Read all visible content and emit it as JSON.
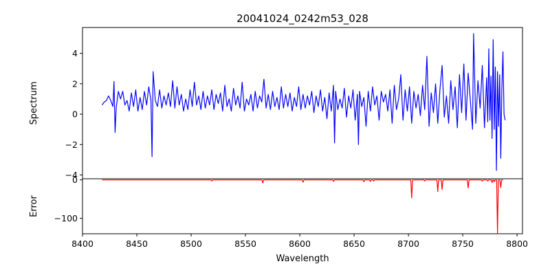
{
  "chart_data": {
    "type": "line",
    "title": "20041024_0242m53_028",
    "xlabel": "Wavelength",
    "xlim": [
      8400,
      8805
    ],
    "x_ticks": [
      "8400",
      "8450",
      "8500",
      "8550",
      "8600",
      "8650",
      "8700",
      "8750",
      "8800"
    ],
    "x_range": [
      8418,
      8787
    ],
    "panels": [
      {
        "ylabel": "Spectrum",
        "ylim": [
          -4.25,
          5.7
        ],
        "y_ticks": [
          "−4",
          "−2",
          "0",
          "2",
          "4"
        ],
        "series": [
          {
            "color": "#0000ff",
            "points": [
              [
                8418,
                0.6
              ],
              [
                8420,
                0.8
              ],
              [
                8422,
                0.9
              ],
              [
                8424,
                1.2
              ],
              [
                8426,
                0.9
              ],
              [
                8428,
                0.5
              ],
              [
                8429,
                2.15
              ],
              [
                8430,
                -1.2
              ],
              [
                8431,
                0.4
              ],
              [
                8433,
                1.5
              ],
              [
                8435,
                1.0
              ],
              [
                8437,
                1.5
              ],
              [
                8439,
                0.6
              ],
              [
                8441,
                0.9
              ],
              [
                8443,
                0.2
              ],
              [
                8445,
                1.4
              ],
              [
                8447,
                0.5
              ],
              [
                8449,
                1.6
              ],
              [
                8451,
                0.2
              ],
              [
                8453,
                1.1
              ],
              [
                8455,
                0.3
              ],
              [
                8457,
                1.5
              ],
              [
                8459,
                0.6
              ],
              [
                8461,
                1.8
              ],
              [
                8463,
                0.9
              ],
              [
                8464,
                -2.8
              ],
              [
                8465,
                2.8
              ],
              [
                8467,
                0.9
              ],
              [
                8469,
                0.5
              ],
              [
                8471,
                1.6
              ],
              [
                8473,
                0.4
              ],
              [
                8475,
                1.2
              ],
              [
                8477,
                0.6
              ],
              [
                8479,
                1.4
              ],
              [
                8481,
                0.5
              ],
              [
                8483,
                2.2
              ],
              [
                8485,
                0.4
              ],
              [
                8487,
                1.8
              ],
              [
                8489,
                0.6
              ],
              [
                8491,
                1.3
              ],
              [
                8493,
                0.2
              ],
              [
                8495,
                1.0
              ],
              [
                8497,
                0.3
              ],
              [
                8499,
                1.6
              ],
              [
                8501,
                0.5
              ],
              [
                8503,
                2.1
              ],
              [
                8505,
                0.6
              ],
              [
                8507,
                1.2
              ],
              [
                8509,
                0.3
              ],
              [
                8511,
                1.5
              ],
              [
                8513,
                0.4
              ],
              [
                8515,
                1.2
              ],
              [
                8517,
                0.6
              ],
              [
                8519,
                1.6
              ],
              [
                8521,
                0.3
              ],
              [
                8523,
                1.3
              ],
              [
                8525,
                0.7
              ],
              [
                8527,
                1.4
              ],
              [
                8529,
                0.2
              ],
              [
                8531,
                1.9
              ],
              [
                8533,
                0.5
              ],
              [
                8535,
                1.0
              ],
              [
                8537,
                0.2
              ],
              [
                8539,
                1.7
              ],
              [
                8541,
                0.6
              ],
              [
                8543,
                1.2
              ],
              [
                8545,
                0.4
              ],
              [
                8547,
                2.1
              ],
              [
                8549,
                0.2
              ],
              [
                8551,
                1.0
              ],
              [
                8553,
                0.6
              ],
              [
                8555,
                1.3
              ],
              [
                8557,
                0.2
              ],
              [
                8559,
                1.5
              ],
              [
                8561,
                0.4
              ],
              [
                8563,
                1.2
              ],
              [
                8565,
                0.8
              ],
              [
                8567,
                2.3
              ],
              [
                8569,
                0.4
              ],
              [
                8571,
                1.3
              ],
              [
                8573,
                0.3
              ],
              [
                8575,
                1.5
              ],
              [
                8577,
                0.5
              ],
              [
                8579,
                1.1
              ],
              [
                8581,
                0.3
              ],
              [
                8583,
                1.8
              ],
              [
                8585,
                0.4
              ],
              [
                8587,
                1.3
              ],
              [
                8589,
                0.5
              ],
              [
                8591,
                1.4
              ],
              [
                8593,
                0.2
              ],
              [
                8595,
                1.1
              ],
              [
                8597,
                0.5
              ],
              [
                8599,
                1.8
              ],
              [
                8601,
                0.3
              ],
              [
                8603,
                1.3
              ],
              [
                8605,
                0.4
              ],
              [
                8607,
                1.2
              ],
              [
                8609,
                0.6
              ],
              [
                8611,
                1.5
              ],
              [
                8613,
                0.1
              ],
              [
                8615,
                1.2
              ],
              [
                8617,
                0.5
              ],
              [
                8619,
                1.6
              ],
              [
                8621,
                0.2
              ],
              [
                8623,
                1.1
              ],
              [
                8625,
                -0.3
              ],
              [
                8627,
                1.4
              ],
              [
                8629,
                0.2
              ],
              [
                8631,
                1.9
              ],
              [
                8632,
                -1.9
              ],
              [
                8633,
                1.5
              ],
              [
                8635,
                0.3
              ],
              [
                8637,
                1.0
              ],
              [
                8639,
                0.4
              ],
              [
                8641,
                1.7
              ],
              [
                8643,
                -0.2
              ],
              [
                8645,
                1.2
              ],
              [
                8647,
                0.4
              ],
              [
                8649,
                1.6
              ],
              [
                8651,
                -0.4
              ],
              [
                8653,
                1.3
              ],
              [
                8654,
                -2.0
              ],
              [
                8655,
                1.5
              ],
              [
                8657,
                0.5
              ],
              [
                8659,
                1.1
              ],
              [
                8661,
                -0.8
              ],
              [
                8663,
                1.5
              ],
              [
                8665,
                0.2
              ],
              [
                8667,
                1.8
              ],
              [
                8669,
                0.6
              ],
              [
                8671,
                1.2
              ],
              [
                8673,
                -0.4
              ],
              [
                8675,
                1.5
              ],
              [
                8677,
                0.8
              ],
              [
                8679,
                1.3
              ],
              [
                8681,
                0.2
              ],
              [
                8683,
                1.6
              ],
              [
                8685,
                -0.6
              ],
              [
                8687,
                1.9
              ],
              [
                8689,
                0.3
              ],
              [
                8691,
                1.0
              ],
              [
                8693,
                2.6
              ],
              [
                8695,
                -0.4
              ],
              [
                8697,
                1.6
              ],
              [
                8699,
                0.2
              ],
              [
                8701,
                1.8
              ],
              [
                8703,
                -0.6
              ],
              [
                8705,
                1.5
              ],
              [
                8707,
                0.4
              ],
              [
                8709,
                1.3
              ],
              [
                8711,
                -0.1
              ],
              [
                8713,
                1.9
              ],
              [
                8715,
                0.3
              ],
              [
                8717,
                3.8
              ],
              [
                8719,
                -0.8
              ],
              [
                8721,
                1.4
              ],
              [
                8723,
                0.1
              ],
              [
                8725,
                2.0
              ],
              [
                8727,
                -0.6
              ],
              [
                8729,
                1.6
              ],
              [
                8731,
                3.2
              ],
              [
                8733,
                -0.2
              ],
              [
                8735,
                1.2
              ],
              [
                8737,
                -0.6
              ],
              [
                8739,
                2.2
              ],
              [
                8741,
                0.3
              ],
              [
                8743,
                1.8
              ],
              [
                8745,
                -0.9
              ],
              [
                8747,
                2.6
              ],
              [
                8749,
                0.1
              ],
              [
                8751,
                3.3
              ],
              [
                8753,
                -0.4
              ],
              [
                8755,
                2.7
              ],
              [
                8757,
                0.9
              ],
              [
                8759,
                -1.0
              ],
              [
                8760,
                5.3
              ],
              [
                8762,
                -0.6
              ],
              [
                8764,
                2.2
              ],
              [
                8766,
                0.4
              ],
              [
                8768,
                3.2
              ],
              [
                8770,
                -0.9
              ],
              [
                8772,
                2.4
              ],
              [
                8773,
                -0.5
              ],
              [
                8774,
                4.3
              ],
              [
                8775,
                -0.4
              ],
              [
                8776,
                2.5
              ],
              [
                8777,
                -1.6
              ],
              [
                8778,
                4.9
              ],
              [
                8779,
                -1.0
              ],
              [
                8780,
                3.1
              ],
              [
                8781,
                -3.7
              ],
              [
                8782,
                2.8
              ],
              [
                8783,
                -0.8
              ],
              [
                8784,
                2.6
              ],
              [
                8785,
                -2.9
              ],
              [
                8786,
                1.7
              ],
              [
                8787,
                4.1
              ],
              [
                8788,
                0.0
              ],
              [
                8789,
                -0.4
              ]
            ]
          }
        ]
      },
      {
        "ylabel": "Error",
        "ylim": [
          -140,
          3
        ],
        "y_ticks": [
          "0",
          "−100"
        ],
        "series": [
          {
            "color": "#ff0000",
            "baseline": 0,
            "dips": [
              [
                8519,
                -3
              ],
              [
                8566,
                -8
              ],
              [
                8603,
                -6
              ],
              [
                8631,
                -4
              ],
              [
                8659,
                -5
              ],
              [
                8665,
                -4
              ],
              [
                8668,
                -3
              ],
              [
                8703,
                -47
              ],
              [
                8715,
                -3
              ],
              [
                8727,
                -30
              ],
              [
                8731,
                -25
              ],
              [
                8755,
                -21
              ],
              [
                8768,
                -3
              ],
              [
                8773,
                -3
              ],
              [
                8777,
                -7
              ],
              [
                8779,
                -5
              ],
              [
                8782,
                -138
              ],
              [
                8785,
                -20
              ]
            ]
          }
        ]
      }
    ]
  }
}
